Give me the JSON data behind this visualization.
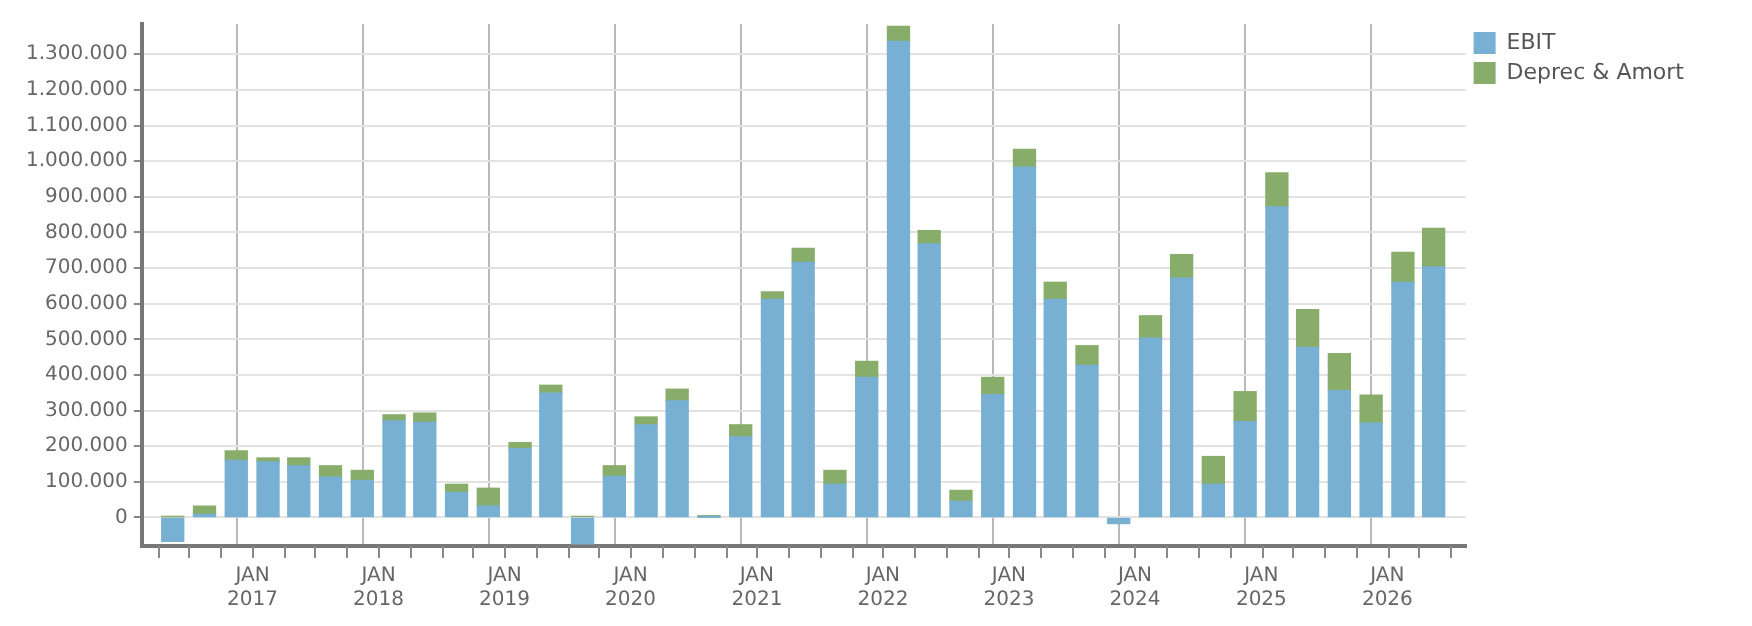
{
  "chart_data": {
    "type": "bar",
    "stacked": true,
    "x": [
      "2016-05-15",
      "2016-08-15",
      "2016-11-15",
      "2017-02-15",
      "2017-05-15",
      "2017-08-15",
      "2017-11-15",
      "2018-02-15",
      "2018-05-15",
      "2018-08-15",
      "2018-11-15",
      "2019-02-15",
      "2019-05-15",
      "2019-08-15",
      "2019-11-15",
      "2020-02-15",
      "2020-05-15",
      "2020-08-15",
      "2020-11-15",
      "2021-02-15",
      "2021-05-15",
      "2021-08-15",
      "2021-11-15",
      "2022-02-15",
      "2022-05-15",
      "2022-08-15",
      "2022-11-15",
      "2023-02-15",
      "2023-05-15",
      "2023-08-15",
      "2023-11-15",
      "2024-02-15",
      "2024-05-15",
      "2024-08-15",
      "2024-11-15",
      "2025-02-15",
      "2025-05-15",
      "2025-08-15",
      "2025-11-15",
      "2026-02-15",
      "2026-05-15"
    ],
    "series": [
      {
        "name": "EBIT",
        "color": "#77b0d2",
        "values": [
          -67000,
          9000,
          160000,
          156000,
          145000,
          113000,
          104000,
          271000,
          267000,
          70000,
          32000,
          193000,
          349000,
          -74000,
          115000,
          260000,
          327000,
          1000,
          226000,
          612000,
          716000,
          93000,
          393000,
          1336000,
          768000,
          45000,
          345000,
          983000,
          612000,
          427000,
          -17000,
          503000,
          672000,
          93000,
          269000,
          872000,
          477000,
          356000,
          265000,
          660000,
          703000
        ]
      },
      {
        "name": "Deprec & Amort",
        "color": "#88ad6a",
        "values": [
          3000,
          23000,
          27000,
          11000,
          22000,
          32000,
          28000,
          17000,
          26000,
          23000,
          50000,
          17000,
          22000,
          3000,
          30000,
          22000,
          33000,
          4000,
          34000,
          21000,
          39000,
          39000,
          45000,
          42000,
          37000,
          31000,
          48000,
          50000,
          48000,
          55000,
          null,
          63000,
          66000,
          78000,
          84000,
          95000,
          106000,
          104000,
          78000,
          84000,
          108000
        ]
      }
    ],
    "xlim": [
      "2016-04",
      "2026-07"
    ],
    "xticks": [
      {
        "value": "2016-04",
        "label": null
      },
      {
        "value": "2016-07",
        "label": null
      },
      {
        "value": "2016-10",
        "label": null
      },
      {
        "value": "2017-01",
        "label": "JAN 2017"
      },
      {
        "value": "2017-04",
        "label": null
      },
      {
        "value": "2017-07",
        "label": null
      },
      {
        "value": "2017-10",
        "label": null
      },
      {
        "value": "2018-01",
        "label": "JAN 2018"
      },
      {
        "value": "2018-04",
        "label": null
      },
      {
        "value": "2018-07",
        "label": null
      },
      {
        "value": "2018-10",
        "label": null
      },
      {
        "value": "2019-01",
        "label": "JAN 2019"
      },
      {
        "value": "2019-04",
        "label": null
      },
      {
        "value": "2019-07",
        "label": null
      },
      {
        "value": "2019-10",
        "label": null
      },
      {
        "value": "2020-01",
        "label": "JAN 2020"
      },
      {
        "value": "2020-04",
        "label": null
      },
      {
        "value": "2020-07",
        "label": null
      },
      {
        "value": "2020-10",
        "label": null
      },
      {
        "value": "2021-01",
        "label": "JAN 2021"
      },
      {
        "value": "2021-04",
        "label": null
      },
      {
        "value": "2021-07",
        "label": null
      },
      {
        "value": "2021-10",
        "label": null
      },
      {
        "value": "2022-01",
        "label": "JAN 2022"
      },
      {
        "value": "2022-04",
        "label": null
      },
      {
        "value": "2022-07",
        "label": null
      },
      {
        "value": "2022-10",
        "label": null
      },
      {
        "value": "2023-01",
        "label": "JAN 2023"
      },
      {
        "value": "2023-04",
        "label": null
      },
      {
        "value": "2023-07",
        "label": null
      },
      {
        "value": "2023-10",
        "label": null
      },
      {
        "value": "2024-01",
        "label": "JAN 2024"
      },
      {
        "value": "2024-04",
        "label": null
      },
      {
        "value": "2024-07",
        "label": null
      },
      {
        "value": "2024-10",
        "label": null
      },
      {
        "value": "2025-01",
        "label": "JAN 2025"
      },
      {
        "value": "2025-04",
        "label": null
      },
      {
        "value": "2025-07",
        "label": null
      },
      {
        "value": "2025-10",
        "label": null
      },
      {
        "value": "2026-01",
        "label": "JAN 2026"
      },
      {
        "value": "2026-04",
        "label": null
      },
      {
        "value": "2026-07",
        "label": null
      }
    ],
    "ylim": [
      -80000,
      1385000
    ],
    "yticks": [
      {
        "value": 0,
        "label": "0"
      },
      {
        "value": 100000,
        "label": "100.000"
      },
      {
        "value": 200000,
        "label": "200.000"
      },
      {
        "value": 300000,
        "label": "300.000"
      },
      {
        "value": 400000,
        "label": "400.000"
      },
      {
        "value": 500000,
        "label": "500.000"
      },
      {
        "value": 600000,
        "label": "600.000"
      },
      {
        "value": 700000,
        "label": "700.000"
      },
      {
        "value": 800000,
        "label": "800.000"
      },
      {
        "value": 900000,
        "label": "900.000"
      },
      {
        "value": 1000000,
        "label": "1.000.000"
      },
      {
        "value": 1100000,
        "label": "1.100.000"
      },
      {
        "value": 1200000,
        "label": "1.200.000"
      },
      {
        "value": 1300000,
        "label": "1.300.000"
      }
    ],
    "grid": true,
    "legend": "top right"
  }
}
